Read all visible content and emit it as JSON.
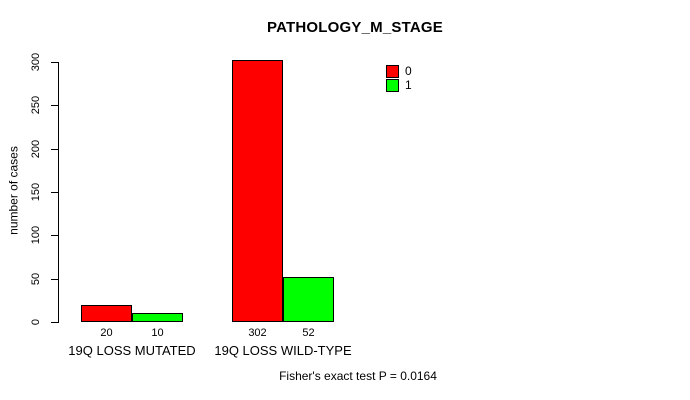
{
  "chart_data": {
    "type": "bar",
    "title": "PATHOLOGY_M_STAGE",
    "xlabel": "",
    "ylabel": "number of cases",
    "ylim": [
      0,
      300
    ],
    "yticks": [
      0,
      50,
      100,
      150,
      200,
      250,
      300
    ],
    "categories": [
      "19Q LOSS MUTATED",
      "19Q LOSS WILD-TYPE"
    ],
    "series": [
      {
        "name": "0",
        "color": "#FF0000",
        "values": [
          20,
          302
        ]
      },
      {
        "name": "1",
        "color": "#00FF00",
        "values": [
          10,
          52
        ]
      }
    ],
    "value_labels": [
      [
        "20",
        "10"
      ],
      [
        "302",
        "52"
      ]
    ],
    "legend": {
      "position": "inside-top-right",
      "items": [
        "0",
        "1"
      ]
    },
    "grid": false,
    "annotation": "Fisher's exact test P = 0.0164",
    "background_color": "#FFFFFF",
    "axis_color": "#000000"
  }
}
